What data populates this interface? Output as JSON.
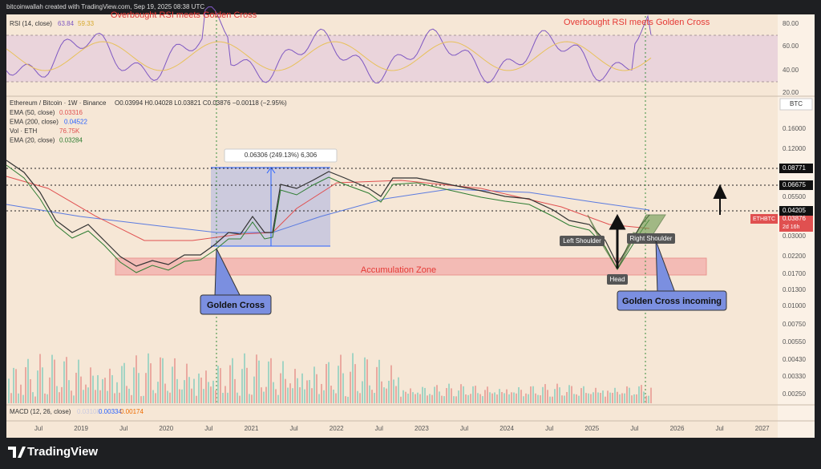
{
  "header": {
    "credit": "bitcoinwallah created with TradingView.com, Sep 19, 2025 08:38 UTC"
  },
  "rsi_panel": {
    "label": "RSI (14, close)",
    "value": "63.84",
    "ma": "59.33",
    "ticks": [
      "80.00",
      "60.00",
      "40.00",
      "20.00"
    ]
  },
  "main_panel": {
    "symbol": "Ethereum / Bitcoin · 1W · Binance",
    "ohlc": "O0.03994 H0.04028 L0.03821 C0.03876 −0.00118 (−2.95%)",
    "indicators": [
      {
        "label": "EMA (50, close)",
        "value": "0.03316"
      },
      {
        "label": "EMA (200, close)",
        "value": "0.04522"
      },
      {
        "label": "Vol · ETH",
        "value": "76.75K"
      },
      {
        "label": "EMA (20, close)",
        "value": "0.03284"
      }
    ],
    "currency": "BTC",
    "price_ticks": [
      "0.16000",
      "0.12000",
      "0.05500",
      "0.03000",
      "0.02200",
      "0.01700",
      "0.01300",
      "0.01000",
      "0.00750",
      "0.00550",
      "0.00430",
      "0.00330",
      "0.00250"
    ],
    "marked_levels": [
      "0.08771",
      "0.06675",
      "0.04205"
    ],
    "last_price": {
      "symbol": "ETHBTC",
      "price": "0.03876",
      "countdown": "2d 16h"
    }
  },
  "macd_panel": {
    "label": "MACD (12, 26, close)",
    "values": [
      "0.03108",
      "0.00334",
      "0.00174"
    ]
  },
  "time_axis": [
    "Jul",
    "2019",
    "Jul",
    "2020",
    "Jul",
    "2021",
    "Jul",
    "2022",
    "Jul",
    "2023",
    "Jul",
    "2024",
    "Jul",
    "2025",
    "Jul",
    "2026",
    "Jul",
    "2027"
  ],
  "annotations": {
    "rsi_left": "Overbought RSI meets Golden Cross",
    "rsi_right": "Overbought RSI meets Golden Cross",
    "measure": "0.06306 (249.13%) 6,306",
    "zone": "Accumulation Zone",
    "golden_cross": "Golden Cross",
    "golden_cross_incoming": "Golden Cross incoming",
    "left_shoulder": "Left Shoulder",
    "right_shoulder": "Right Shoulder",
    "head": "Head"
  },
  "footer": {
    "brand": "TradingView"
  }
}
